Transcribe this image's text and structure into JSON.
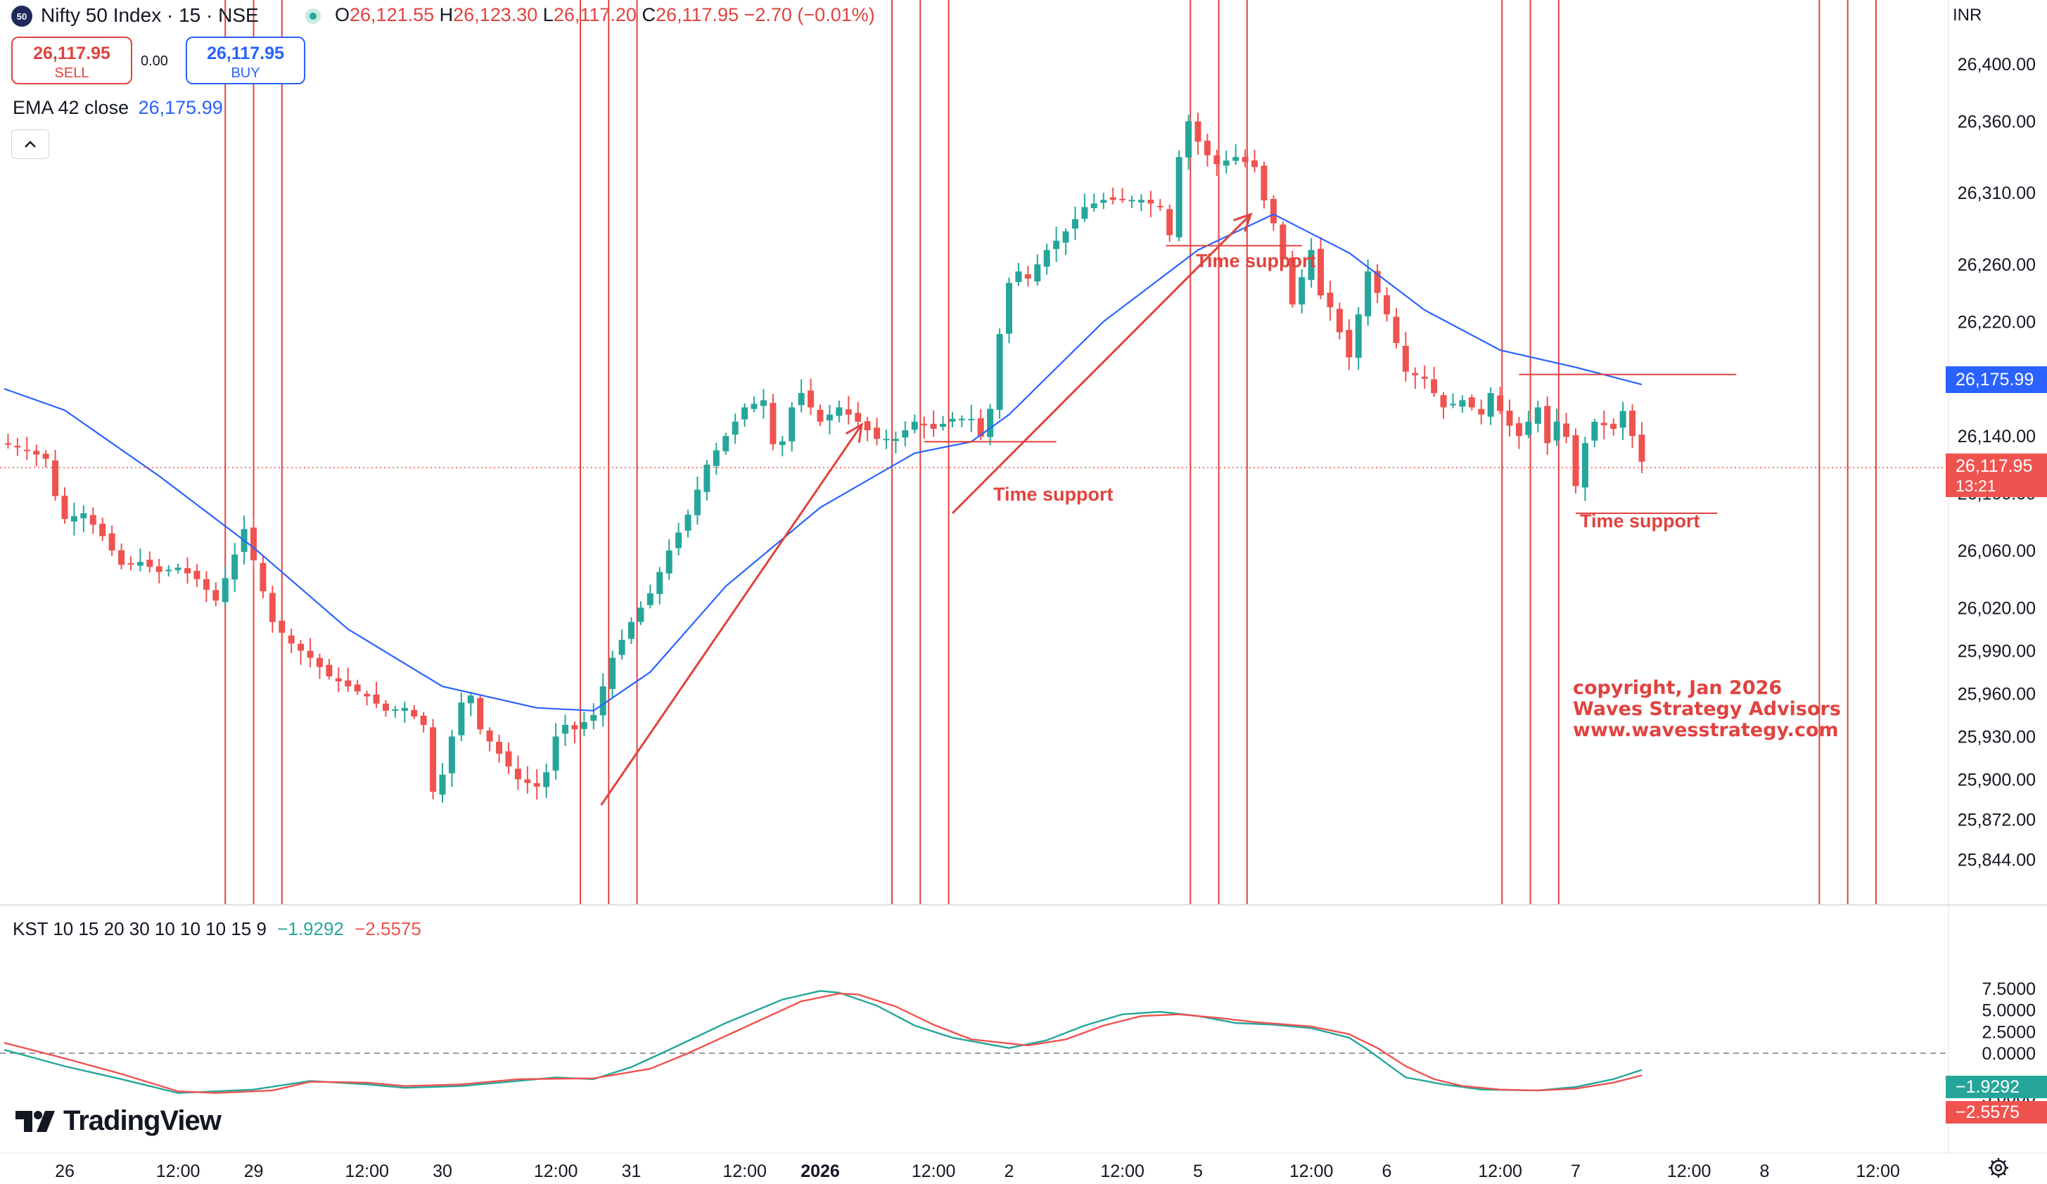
{
  "header": {
    "badge": "50",
    "title": "Nifty 50 Index · 15 · NSE",
    "open_label": "O",
    "open": "26,121.55",
    "high_label": "H",
    "high": "26,123.30",
    "low_label": "L",
    "low": "26,117.20",
    "close_label": "C",
    "close": "26,117.95",
    "change": "−2.70 (−0.01%)"
  },
  "trade": {
    "sell_price": "26,117.95",
    "sell_label": "SELL",
    "buy_price": "26,117.95",
    "buy_label": "BUY",
    "spread": "0.00"
  },
  "ema_legend": {
    "label": "EMA 42 close",
    "value": "26,175.99"
  },
  "kst_legend": {
    "label": "KST 10 15 20 30 10 10 10 15 9",
    "kst_value": "−1.9292",
    "signal_value": "−2.5575"
  },
  "currency": "INR",
  "price_tags": {
    "ema": "26,175.99",
    "last": "26,117.95",
    "countdown": "13:21",
    "kst": "−1.9292",
    "signal": "−2.5575"
  },
  "annotations": {
    "time_support_1": "Time support",
    "time_support_2": "Time support",
    "time_support_3": "Time support",
    "copyright_lines": [
      "copyright, Jan 2026",
      "Waves Strategy Advisors",
      "www.wavesstrategy.com"
    ]
  },
  "logo_text": "TradingView",
  "colors": {
    "up": "#26a69a",
    "down": "#ef5350",
    "ema": "#2962ff",
    "annotation": "#e0433f",
    "kst": "#26a69a",
    "signal": "#ef5350",
    "grid": "#e0e3eb"
  },
  "chart_data": [
    {
      "type": "candlestick",
      "title": "Nifty 50 Index · 15 · NSE",
      "ylabel": "INR",
      "y_ticks": [
        25844,
        25872,
        25900,
        25930,
        25960,
        25990,
        26020,
        26060,
        26100,
        26140,
        26220,
        26260,
        26310,
        26360,
        26400
      ],
      "y_tick_labels": [
        "25,844.00",
        "25,872.00",
        "25,900.00",
        "25,930.00",
        "25,960.00",
        "25,990.00",
        "26,020.00",
        "26,060.00",
        "26,100.00",
        "26,140.00",
        "26,220.00",
        "26,260.00",
        "26,310.00",
        "26,360.00",
        "26,400.00"
      ],
      "x_tick_labels": [
        "26",
        "12:00",
        "29",
        "12:00",
        "30",
        "12:00",
        "31",
        "12:00",
        "2026",
        "12:00",
        "2",
        "12:00",
        "5",
        "12:00",
        "6",
        "12:00",
        "7",
        "12:00",
        "8",
        "12:00"
      ],
      "x_tick_units": [
        0,
        6,
        10,
        16,
        20,
        26,
        30,
        36,
        40,
        46,
        50,
        56,
        60,
        66,
        70,
        76,
        80,
        86,
        90,
        96
      ],
      "close_path": [
        [
          -3.2,
          26135
        ],
        [
          -2.0,
          26130
        ],
        [
          -1.0,
          26124
        ],
        [
          -0.5,
          26098
        ],
        [
          0,
          26082
        ],
        [
          1,
          26086
        ],
        [
          2,
          26070
        ],
        [
          3,
          26050
        ],
        [
          4,
          26052
        ],
        [
          5,
          26045
        ],
        [
          6,
          26048
        ],
        [
          7,
          26040
        ],
        [
          8,
          26025
        ],
        [
          8.8,
          26050
        ],
        [
          9.5,
          26075
        ],
        [
          10.3,
          26040
        ],
        [
          11,
          26010
        ],
        [
          12,
          25995
        ],
        [
          13,
          25985
        ],
        [
          14,
          25972
        ],
        [
          15,
          25965
        ],
        [
          16,
          25958
        ],
        [
          17,
          25948
        ],
        [
          18,
          25950
        ],
        [
          19,
          25938
        ],
        [
          19.6,
          25882
        ],
        [
          20.5,
          25930
        ],
        [
          21.3,
          25968
        ],
        [
          22,
          25935
        ],
        [
          23,
          25918
        ],
        [
          24,
          25900
        ],
        [
          25,
          25895
        ],
        [
          25.5,
          25905
        ],
        [
          26.2,
          25940
        ],
        [
          27,
          25935
        ],
        [
          28,
          25945
        ],
        [
          29,
          25985
        ],
        [
          30,
          26010
        ],
        [
          31,
          26030
        ],
        [
          32,
          26060
        ],
        [
          33,
          26085
        ],
        [
          34,
          26120
        ],
        [
          35,
          26140
        ],
        [
          36,
          26160
        ],
        [
          37,
          26165
        ],
        [
          37.7,
          26122
        ],
        [
          38.5,
          26160
        ],
        [
          39,
          26170
        ],
        [
          40,
          26150
        ],
        [
          41,
          26160
        ],
        [
          42,
          26150
        ],
        [
          43,
          26138
        ],
        [
          44,
          26138
        ],
        [
          45,
          26150
        ],
        [
          46,
          26145
        ],
        [
          47,
          26152
        ],
        [
          48,
          26152
        ],
        [
          48.6,
          26137
        ],
        [
          49.2,
          26170
        ],
        [
          49.6,
          26225
        ],
        [
          50.2,
          26258
        ],
        [
          51,
          26250
        ],
        [
          52,
          26270
        ],
        [
          53,
          26283
        ],
        [
          54,
          26300
        ],
        [
          55,
          26305
        ],
        [
          56,
          26305
        ],
        [
          57,
          26305
        ],
        [
          58,
          26300
        ],
        [
          58.4,
          26268
        ],
        [
          58.9,
          26330
        ],
        [
          59.5,
          26360
        ],
        [
          60.2,
          26340
        ],
        [
          61,
          26330
        ],
        [
          62,
          26335
        ],
        [
          63,
          26328
        ],
        [
          63.6,
          26300
        ],
        [
          64.2,
          26283
        ],
        [
          65,
          26232
        ],
        [
          66,
          26270
        ],
        [
          66.4,
          26240
        ],
        [
          67,
          26230
        ],
        [
          68,
          26195
        ],
        [
          69,
          26255
        ],
        [
          70,
          26225
        ],
        [
          71,
          26185
        ],
        [
          72,
          26180
        ],
        [
          73,
          26160
        ],
        [
          74,
          26165
        ],
        [
          75,
          26155
        ],
        [
          75.5,
          26170
        ],
        [
          76.3,
          26150
        ],
        [
          77,
          26140
        ],
        [
          78,
          26160
        ],
        [
          78.6,
          26130
        ],
        [
          79.2,
          26160
        ],
        [
          80,
          26105
        ],
        [
          80.5,
          26135
        ],
        [
          81,
          26150
        ],
        [
          82,
          26145
        ],
        [
          82.6,
          26160
        ],
        [
          83,
          26140
        ],
        [
          83.5,
          26122
        ]
      ],
      "ema_path": [
        [
          -3.2,
          26173
        ],
        [
          0,
          26158
        ],
        [
          5,
          26112
        ],
        [
          10,
          26062
        ],
        [
          15,
          26005
        ],
        [
          20,
          25965
        ],
        [
          25,
          25950
        ],
        [
          28,
          25948
        ],
        [
          31,
          25975
        ],
        [
          35,
          26035
        ],
        [
          40,
          26090
        ],
        [
          45,
          26128
        ],
        [
          48,
          26136
        ],
        [
          50,
          26155
        ],
        [
          55,
          26220
        ],
        [
          60,
          26270
        ],
        [
          64,
          26295
        ],
        [
          68,
          26268
        ],
        [
          72,
          26228
        ],
        [
          76,
          26200
        ],
        [
          80,
          26188
        ],
        [
          83.5,
          26176
        ]
      ],
      "time_support_lines": [
        {
          "x0": 45.5,
          "x1": 52.5,
          "y": 26136
        },
        {
          "x0": 58.3,
          "x1": 65.5,
          "y": 26273
        },
        {
          "x0": 80.0,
          "x1": 87.5,
          "y": 26086
        }
      ],
      "resistance_line": {
        "x0": 77.0,
        "x1": 88.5,
        "y": 26183
      },
      "trend_arrows": [
        {
          "x0": 28.4,
          "x1": 42.2,
          "y0": 25882,
          "y1": 26148
        },
        {
          "x0": 47.0,
          "x1": 62.8,
          "y0": 26086,
          "y1": 26295
        }
      ],
      "cycle_lines_x": [
        8.5,
        10.0,
        11.5,
        27.3,
        28.8,
        30.3,
        43.8,
        45.3,
        46.8,
        59.6,
        61.1,
        62.6,
        76.1,
        77.6,
        79.1,
        92.9,
        94.4,
        95.9
      ],
      "last_price": 26117.95
    },
    {
      "type": "line",
      "title": "KST 10 15 20 30 10 10 10 15 9",
      "series": [
        {
          "name": "KST",
          "values": [
            [
              -3.2,
              0.4
            ],
            [
              0,
              -1.5
            ],
            [
              3,
              -3.0
            ],
            [
              6,
              -4.6
            ],
            [
              10,
              -4.2
            ],
            [
              13,
              -3.2
            ],
            [
              16,
              -3.6
            ],
            [
              18,
              -4.0
            ],
            [
              21,
              -3.8
            ],
            [
              24,
              -3.2
            ],
            [
              26,
              -2.8
            ],
            [
              28,
              -3.0
            ],
            [
              30,
              -1.6
            ],
            [
              32,
              0.4
            ],
            [
              35,
              3.5
            ],
            [
              38,
              6.2
            ],
            [
              40,
              7.2
            ],
            [
              41,
              7.0
            ],
            [
              43,
              5.5
            ],
            [
              45,
              3.2
            ],
            [
              47,
              1.8
            ],
            [
              50,
              0.6
            ],
            [
              52,
              1.5
            ],
            [
              54,
              3.2
            ],
            [
              56,
              4.5
            ],
            [
              58,
              4.8
            ],
            [
              60,
              4.3
            ],
            [
              62,
              3.5
            ],
            [
              64,
              3.3
            ],
            [
              66,
              2.9
            ],
            [
              68,
              1.8
            ],
            [
              69,
              0.4
            ],
            [
              70,
              -1.2
            ],
            [
              71,
              -2.8
            ],
            [
              73,
              -3.6
            ],
            [
              75,
              -4.2
            ],
            [
              78,
              -4.3
            ],
            [
              80,
              -3.9
            ],
            [
              82,
              -3.0
            ],
            [
              83.5,
              -1.93
            ]
          ]
        },
        {
          "name": "Signal",
          "values": [
            [
              -3.2,
              1.2
            ],
            [
              0,
              -0.6
            ],
            [
              3,
              -2.4
            ],
            [
              6,
              -4.4
            ],
            [
              8,
              -4.6
            ],
            [
              11,
              -4.3
            ],
            [
              13,
              -3.3
            ],
            [
              16,
              -3.4
            ],
            [
              18,
              -3.8
            ],
            [
              21,
              -3.6
            ],
            [
              24,
              -3.0
            ],
            [
              28,
              -2.9
            ],
            [
              31,
              -1.8
            ],
            [
              33,
              0.0
            ],
            [
              36,
              3.0
            ],
            [
              39,
              6.0
            ],
            [
              41,
              6.9
            ],
            [
              42,
              6.8
            ],
            [
              44,
              5.4
            ],
            [
              46,
              3.3
            ],
            [
              48,
              1.6
            ],
            [
              51,
              0.9
            ],
            [
              53,
              1.6
            ],
            [
              55,
              3.2
            ],
            [
              57,
              4.3
            ],
            [
              59,
              4.5
            ],
            [
              61,
              4.1
            ],
            [
              63,
              3.6
            ],
            [
              66,
              3.1
            ],
            [
              68,
              2.2
            ],
            [
              69.5,
              0.6
            ],
            [
              71,
              -1.5
            ],
            [
              72.5,
              -3.0
            ],
            [
              74,
              -3.8
            ],
            [
              76,
              -4.2
            ],
            [
              78,
              -4.3
            ],
            [
              80,
              -4.1
            ],
            [
              82,
              -3.4
            ],
            [
              83.5,
              -2.56
            ]
          ]
        }
      ],
      "y_ticks": [
        -5,
        0,
        2.5,
        5,
        7.5
      ],
      "y_tick_labels": [
        "−5.0000",
        "0.0000",
        "2.5000",
        "5.0000",
        "7.5000"
      ],
      "zero_line": 0
    }
  ]
}
